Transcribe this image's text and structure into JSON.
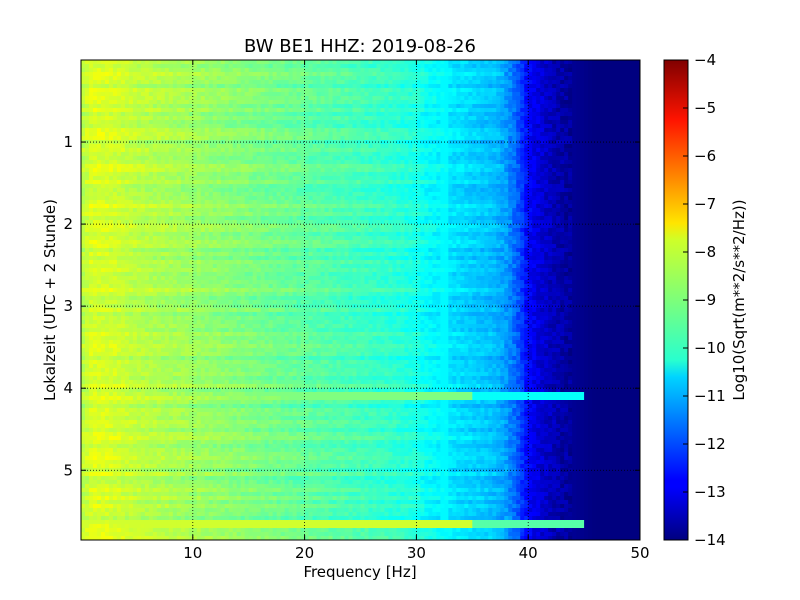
{
  "chart_data": {
    "type": "heatmap",
    "title": "BW BE1 HHZ: 2019-08-26",
    "xlabel": "Frequency [Hz]",
    "ylabel": "Lokalzeit (UTC + 2 Stunde)",
    "xlim": [
      0,
      50
    ],
    "ylim": [
      5.85,
      0
    ],
    "xticks": [
      10,
      20,
      30,
      40,
      50
    ],
    "xtick_labels": [
      "10",
      "20",
      "30",
      "40",
      "50"
    ],
    "yticks": [
      1,
      2,
      3,
      4,
      5
    ],
    "ytick_labels": [
      "1",
      "2",
      "3",
      "4",
      "5"
    ],
    "grid": true,
    "colorbar": {
      "label": "Log10(Sqrt(m**2/s**2/Hz))",
      "min": -14,
      "max": -4,
      "ticks": [
        -4,
        -5,
        -6,
        -7,
        -8,
        -9,
        -10,
        -11,
        -12,
        -13,
        -14
      ],
      "tick_labels": [
        "−4",
        "−5",
        "−6",
        "−7",
        "−8",
        "−9",
        "−10",
        "−11",
        "−12",
        "−13",
        "−14"
      ],
      "colormap": "jet"
    },
    "frequency_profile": {
      "frequency_hz": [
        0,
        1,
        3,
        5,
        10,
        15,
        20,
        25,
        28,
        30,
        31,
        33,
        35,
        37,
        38,
        39,
        40,
        42,
        44,
        46,
        50
      ],
      "log10_amplitude": [
        -8.5,
        -8.1,
        -8.2,
        -8.4,
        -8.7,
        -9.0,
        -9.3,
        -9.6,
        -9.8,
        -10.0,
        -10.2,
        -10.5,
        -10.7,
        -10.9,
        -11.2,
        -11.8,
        -12.8,
        -13.4,
        -13.8,
        -14.0,
        -14.0
      ]
    },
    "features": [
      {
        "name": "bright horizontal stripe",
        "time_h": 4.1,
        "freq_range_hz": [
          10,
          45
        ],
        "log10_amplitude": -9.0
      },
      {
        "name": "bright horizontal stripe",
        "time_h": 5.65,
        "freq_range_hz": [
          0,
          45
        ],
        "log10_amplitude": -8.2
      },
      {
        "name": "narrow line",
        "freq_hz": 32.5,
        "log10_amplitude": -10.3
      }
    ]
  }
}
